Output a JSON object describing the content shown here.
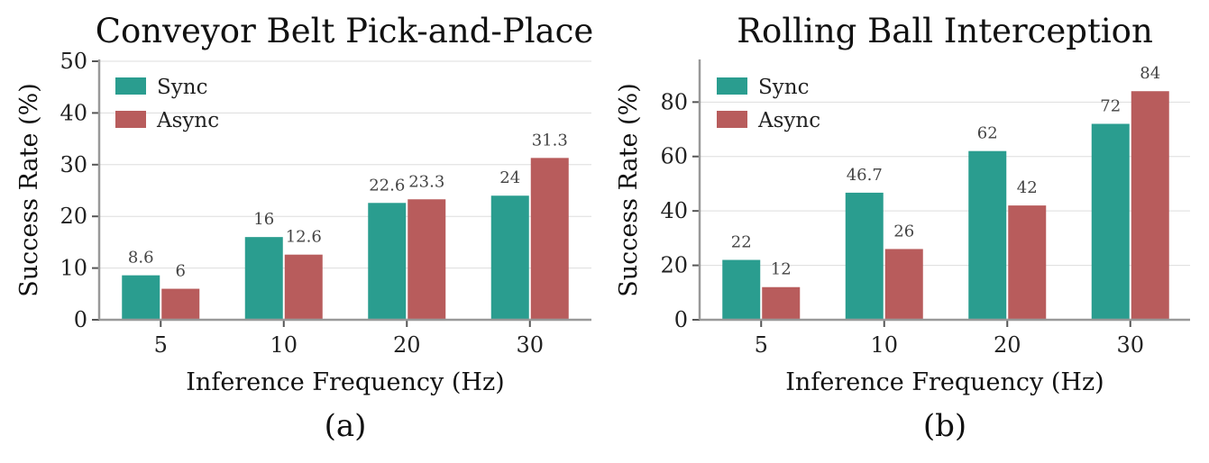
{
  "chart_data": [
    {
      "type": "bar",
      "title": "Conveyor Belt Pick-and-Place",
      "xlabel": "Inference Frequency (Hz)",
      "ylabel": "Success Rate (%)",
      "categories": [
        "5",
        "10",
        "20",
        "30"
      ],
      "series": [
        {
          "name": "Sync",
          "values": [
            8.6,
            16,
            22.6,
            24
          ],
          "labels": [
            "8.6",
            "16",
            "22.6",
            "24"
          ]
        },
        {
          "name": "Async",
          "values": [
            6,
            12.6,
            23.3,
            31.3
          ],
          "labels": [
            "6",
            "12.6",
            "23.3",
            "31.3"
          ]
        }
      ],
      "ylim": [
        0,
        50
      ],
      "yticks": [
        0,
        10,
        20,
        30,
        40,
        50
      ],
      "grid": "horizontal",
      "legend": "top-left",
      "panel_label": "(a)"
    },
    {
      "type": "bar",
      "title": "Rolling Ball Interception",
      "xlabel": "Inference Frequency (Hz)",
      "ylabel": "Success Rate (%)",
      "categories": [
        "5",
        "10",
        "20",
        "30"
      ],
      "series": [
        {
          "name": "Sync",
          "values": [
            22,
            46.7,
            62,
            72
          ],
          "labels": [
            "22",
            "46.7",
            "62",
            "72"
          ]
        },
        {
          "name": "Async",
          "values": [
            12,
            26,
            42,
            84
          ],
          "labels": [
            "12",
            "26",
            "42",
            "84"
          ]
        }
      ],
      "ylim": [
        0,
        95
      ],
      "yticks": [
        0,
        20,
        40,
        60,
        80
      ],
      "grid": "horizontal",
      "legend": "top-left",
      "panel_label": "(b)"
    }
  ],
  "colors": {
    "sync": "#2a9d8f",
    "async": "#b85c5c",
    "grid": "#dddddd",
    "axis": "#999999"
  }
}
